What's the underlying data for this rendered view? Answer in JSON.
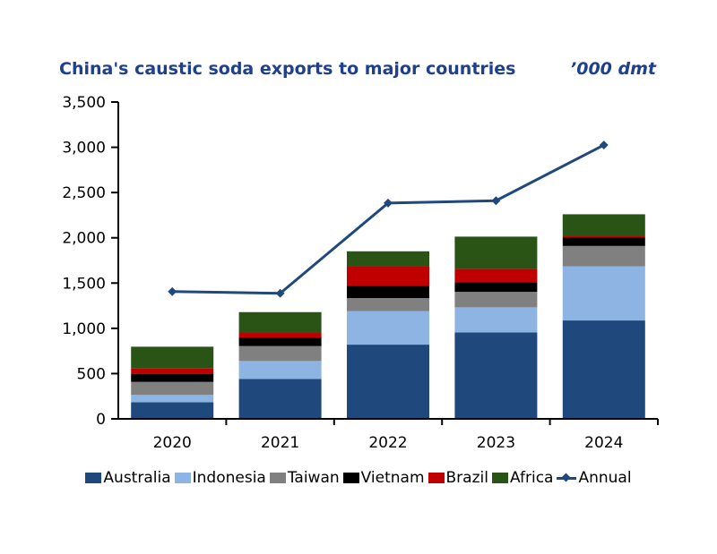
{
  "chart_data": {
    "type": "bar",
    "stacked": true,
    "title": "China's caustic soda exports to major countries",
    "unit_label": "’000 dmt",
    "categories": [
      "2020",
      "2021",
      "2022",
      "2023",
      "2024"
    ],
    "ylim": [
      0,
      3500
    ],
    "yticks": [
      0,
      500,
      1000,
      1500,
      2000,
      2500,
      3000,
      3500
    ],
    "ytick_labels": [
      "0",
      "500",
      "1,000",
      "1,500",
      "2,000",
      "2,500",
      "3,000",
      "3,500"
    ],
    "grid": false,
    "legend_position": "bottom",
    "series": [
      {
        "name": "Australia",
        "color": "#1F497D",
        "values": [
          184,
          441,
          820,
          955,
          1087
        ]
      },
      {
        "name": "Indonesia",
        "color": "#8DB4E2",
        "values": [
          80,
          198,
          369,
          277,
          599
        ]
      },
      {
        "name": "Taiwan",
        "color": "#808080",
        "values": [
          144,
          165,
          145,
          171,
          224
        ]
      },
      {
        "name": "Vietnam",
        "color": "#000000",
        "values": [
          86,
          95,
          135,
          106,
          96
        ]
      },
      {
        "name": "Brazil",
        "color": "#C00000",
        "values": [
          63,
          50,
          221,
          148,
          16
        ]
      },
      {
        "name": "Africa",
        "color": "#295416",
        "values": [
          240,
          230,
          161,
          356,
          238
        ]
      }
    ],
    "line_series": {
      "name": "Annual",
      "color": "#1F497D",
      "type": "line",
      "marker": "diamond",
      "values": [
        1406,
        1387,
        2384,
        2410,
        3025
      ]
    }
  }
}
